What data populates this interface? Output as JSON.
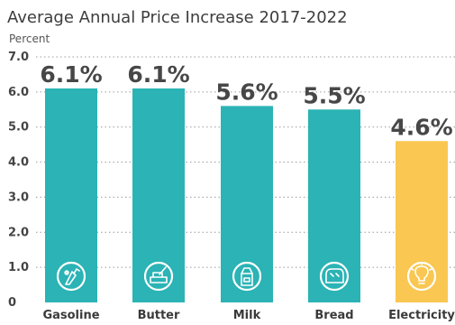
{
  "chart_data": {
    "type": "bar",
    "title": "Average Annual Price Increase 2017-2022",
    "ylabel": "Percent",
    "ylim": [
      0,
      7.0
    ],
    "yticks": [
      "0",
      "1.0",
      "2.0",
      "3.0",
      "4.0",
      "5.0",
      "6.0",
      "7.0"
    ],
    "categories": [
      "Gasoline",
      "Butter",
      "Milk",
      "Bread",
      "Electricity"
    ],
    "values": [
      6.1,
      6.1,
      5.6,
      5.5,
      4.6
    ],
    "value_labels": [
      "6.1%",
      "6.1%",
      "5.6%",
      "5.5%",
      "4.6%"
    ],
    "bar_colors": [
      "#2bb3b5",
      "#2bb3b5",
      "#2bb3b5",
      "#2bb3b5",
      "#f9c752"
    ],
    "icons": [
      "gas-pump-icon",
      "butter-dish-icon",
      "milk-carton-icon",
      "bread-icon",
      "light-bulb-icon"
    ],
    "grid": true,
    "legend": "none"
  }
}
